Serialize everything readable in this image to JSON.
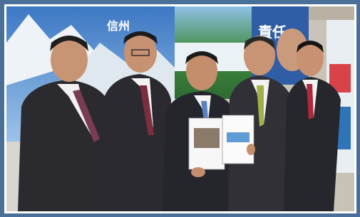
{
  "posters": [
    {
      "text": "信州"
    },
    {
      "text": "責任"
    }
  ]
}
